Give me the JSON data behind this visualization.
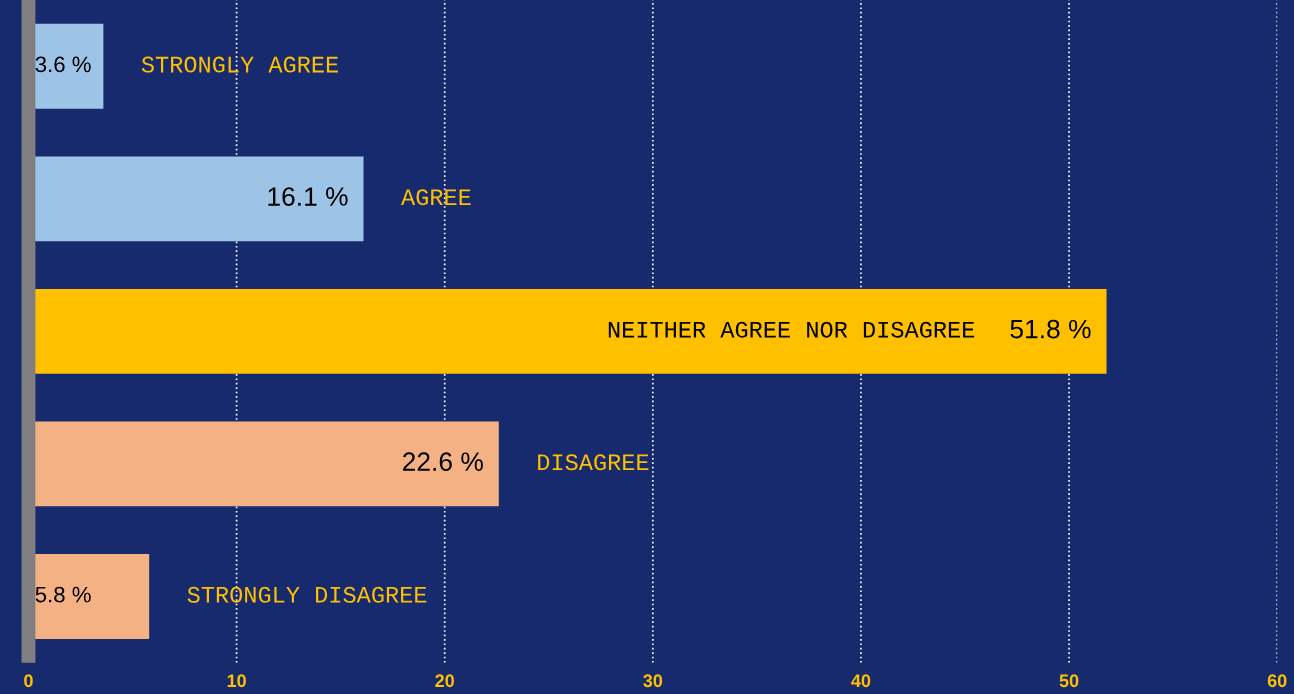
{
  "chart_data": {
    "type": "bar",
    "orientation": "horizontal",
    "categories": [
      "STRONGLY AGREE",
      "AGREE",
      "NEITHER AGREE NOR DISAGREE",
      "DISAGREE",
      "STRONGLY DISAGREE"
    ],
    "values": [
      3.6,
      16.1,
      51.8,
      22.6,
      5.8
    ],
    "value_labels": [
      "3.6 %",
      "16.1 %",
      "51.8 %",
      "22.6 %",
      "5.8 %"
    ],
    "colors": [
      "#9dc3e6",
      "#9dc3e6",
      "#ffc000",
      "#f4b183",
      "#f4b183"
    ],
    "xlim": [
      0,
      60
    ],
    "xticks": [
      0,
      10,
      20,
      30,
      40,
      50,
      60
    ],
    "grid": "x",
    "tick_labels": "x"
  }
}
